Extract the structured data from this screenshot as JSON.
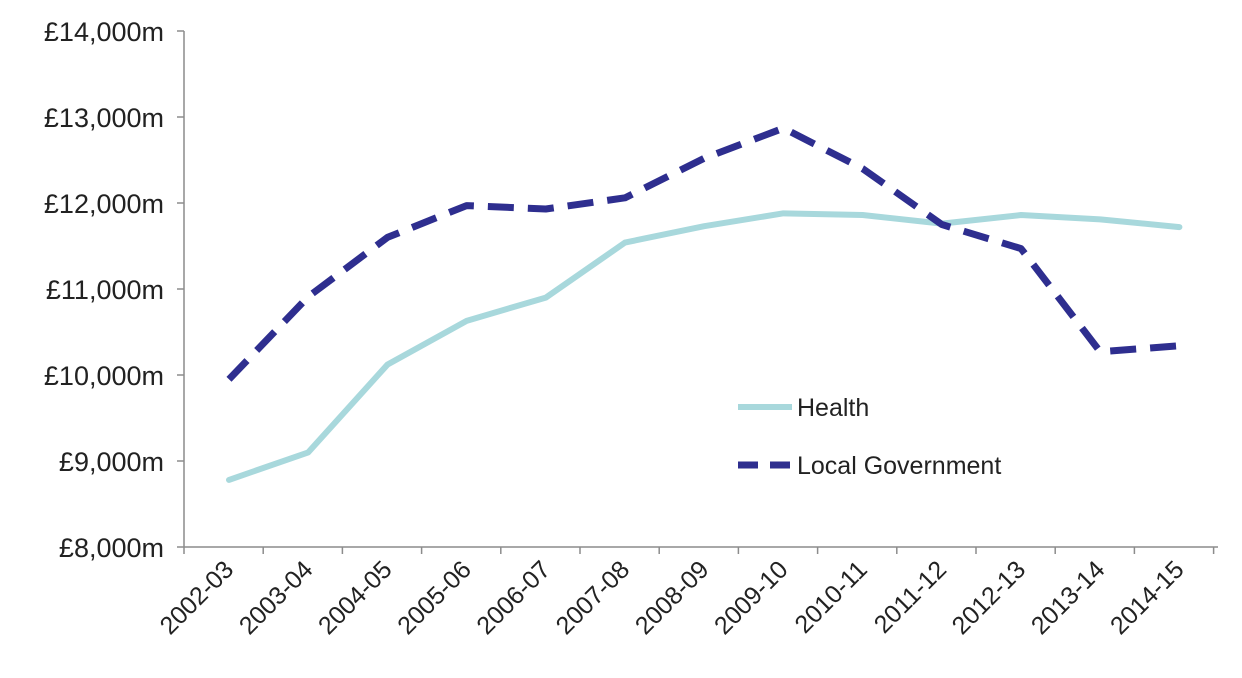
{
  "chart_data": {
    "type": "line",
    "title": "",
    "xlabel": "",
    "ylabel": "",
    "categories": [
      "2002-03",
      "2003-04",
      "2004-05",
      "2005-06",
      "2006-07",
      "2007-08",
      "2008-09",
      "2009-10",
      "2010-11",
      "2011-12",
      "2012-13",
      "2013-14",
      "2014-15"
    ],
    "ylim": [
      8000,
      14000
    ],
    "ytick_values": [
      8000,
      9000,
      10000,
      11000,
      12000,
      13000,
      14000
    ],
    "ytick_labels": [
      "£8,000m",
      "£9,000m",
      "£10,000m",
      "£11,000m",
      "£12,000m",
      "£13,000m",
      "£14,000m"
    ],
    "grid": false,
    "legend_position": "center-right",
    "series": [
      {
        "name": "Health",
        "color": "#a8d8dc",
        "style": "solid",
        "values": [
          8780,
          9100,
          10120,
          10630,
          10900,
          11540,
          11730,
          11880,
          11860,
          11760,
          11860,
          11810,
          11720
        ]
      },
      {
        "name": "Local Government",
        "color": "#2e2e8f",
        "style": "dashed",
        "values": [
          9950,
          10910,
          11600,
          11970,
          11930,
          12060,
          12520,
          12870,
          12400,
          11750,
          11470,
          10270,
          10340
        ]
      }
    ]
  }
}
